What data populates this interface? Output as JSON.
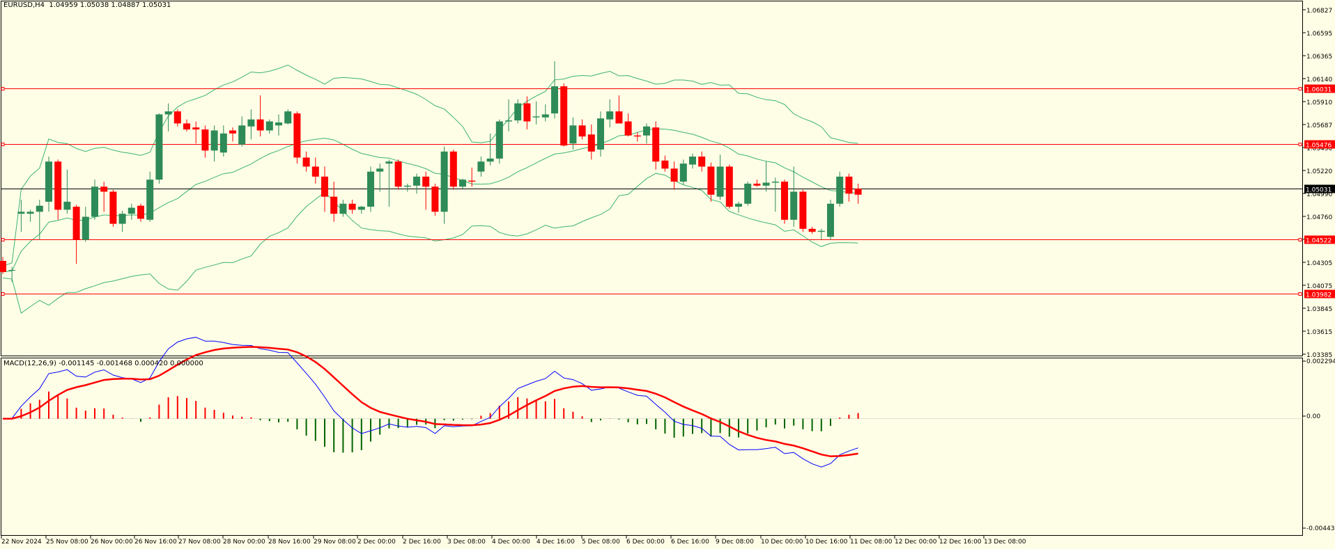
{
  "symbol_info": "EURUSD,H4  1.04959 1.05038 1.04887 1.05031",
  "indicator_info": "MACD(12,26,9) -0.001145 -0.001468 0.000420 0.000000",
  "colors": {
    "background": "#fefee6",
    "bull_candle": "#2e8b57",
    "bear_candle": "#ff0000",
    "bollinger": "#3cb371",
    "level_line": "#ff0000",
    "current_price_line": "#000000",
    "macd_line": "#0000ff",
    "signal_line": "#ff0000",
    "hist_positive": "#ff0000",
    "hist_negative": "#006400"
  },
  "price_axis": {
    "labels": [
      "1.06827",
      "1.06595",
      "1.06365",
      "1.06140",
      "1.05910",
      "1.05687",
      "1.05450",
      "1.05220",
      "1.04990",
      "1.04760",
      "1.04530",
      "1.04305",
      "1.04075",
      "1.03845",
      "1.03615",
      "1.03385"
    ],
    "min": 1.0336,
    "max": 1.0691
  },
  "price_levels": [
    {
      "value": 1.06031,
      "label": "1.06031",
      "type": "resistance"
    },
    {
      "value": 1.05476,
      "label": "1.05476",
      "type": "resistance"
    },
    {
      "value": 1.05031,
      "label": "1.05031",
      "type": "current"
    },
    {
      "value": 1.04522,
      "label": "1.04522",
      "type": "support"
    },
    {
      "value": 1.03982,
      "label": "1.03982",
      "type": "support"
    }
  ],
  "macd_axis": {
    "labels": [
      "0.002294",
      "0.00",
      "-0.004437"
    ],
    "min": -0.0046,
    "max": 0.0024
  },
  "time_axis": [
    "22 Nov 2024",
    "25 Nov 08:00",
    "26 Nov 00:00",
    "26 Nov 16:00",
    "27 Nov 08:00",
    "28 Nov 00:00",
    "28 Nov 16:00",
    "29 Nov 08:00",
    "2 Dec 00:00",
    "2 Dec 16:00",
    "3 Dec 08:00",
    "4 Dec 00:00",
    "4 Dec 16:00",
    "5 Dec 08:00",
    "6 Dec 00:00",
    "6 Dec 16:00",
    "9 Dec 08:00",
    "10 Dec 00:00",
    "10 Dec 16:00",
    "11 Dec 08:00",
    "12 Dec 00:00",
    "12 Dec 16:00",
    "13 Dec 08:00"
  ],
  "chart_data": {
    "type": "candlestick",
    "symbol": "EURUSD",
    "timeframe": "H4",
    "candles": [
      {
        "o": 1.0431,
        "h": 1.0435,
        "l": 1.0418,
        "c": 1.042
      },
      {
        "o": 1.0422,
        "h": 1.0425,
        "l": 1.041,
        "c": 1.0422
      },
      {
        "o": 1.0478,
        "h": 1.0492,
        "l": 1.046,
        "c": 1.048
      },
      {
        "o": 1.0478,
        "h": 1.0482,
        "l": 1.047,
        "c": 1.048
      },
      {
        "o": 1.048,
        "h": 1.0492,
        "l": 1.0452,
        "c": 1.0486
      },
      {
        "o": 1.049,
        "h": 1.0535,
        "l": 1.048,
        "c": 1.053
      },
      {
        "o": 1.053,
        "h": 1.0532,
        "l": 1.0472,
        "c": 1.0482
      },
      {
        "o": 1.0482,
        "h": 1.0522,
        "l": 1.0478,
        "c": 1.049
      },
      {
        "o": 1.0485,
        "h": 1.0487,
        "l": 1.0428,
        "c": 1.0452
      },
      {
        "o": 1.0452,
        "h": 1.0485,
        "l": 1.045,
        "c": 1.0475
      },
      {
        "o": 1.0475,
        "h": 1.0512,
        "l": 1.0472,
        "c": 1.0505
      },
      {
        "o": 1.0505,
        "h": 1.051,
        "l": 1.048,
        "c": 1.05
      },
      {
        "o": 1.05,
        "h": 1.0502,
        "l": 1.0465,
        "c": 1.0468
      },
      {
        "o": 1.0468,
        "h": 1.0481,
        "l": 1.046,
        "c": 1.0478
      },
      {
        "o": 1.0478,
        "h": 1.0488,
        "l": 1.0472,
        "c": 1.0484
      },
      {
        "o": 1.0486,
        "h": 1.0488,
        "l": 1.047,
        "c": 1.0473
      },
      {
        "o": 1.0472,
        "h": 1.052,
        "l": 1.047,
        "c": 1.0512
      },
      {
        "o": 1.0512,
        "h": 1.0578,
        "l": 1.0508,
        "c": 1.0577
      },
      {
        "o": 1.0577,
        "h": 1.0588,
        "l": 1.056,
        "c": 1.058
      },
      {
        "o": 1.058,
        "h": 1.0582,
        "l": 1.0565,
        "c": 1.0568
      },
      {
        "o": 1.0568,
        "h": 1.0572,
        "l": 1.056,
        "c": 1.0562
      },
      {
        "o": 1.0564,
        "h": 1.057,
        "l": 1.0548,
        "c": 1.0562
      },
      {
        "o": 1.0562,
        "h": 1.0566,
        "l": 1.0534,
        "c": 1.0541
      },
      {
        "o": 1.0541,
        "h": 1.0566,
        "l": 1.053,
        "c": 1.0561
      },
      {
        "o": 1.0539,
        "h": 1.0566,
        "l": 1.0535,
        "c": 1.0558
      },
      {
        "o": 1.0561,
        "h": 1.0564,
        "l": 1.055,
        "c": 1.0558
      },
      {
        "o": 1.0547,
        "h": 1.0575,
        "l": 1.0545,
        "c": 1.0566
      },
      {
        "o": 1.0565,
        "h": 1.0582,
        "l": 1.0552,
        "c": 1.0572
      },
      {
        "o": 1.0572,
        "h": 1.0596,
        "l": 1.0555,
        "c": 1.0561
      },
      {
        "o": 1.0561,
        "h": 1.0572,
        "l": 1.0558,
        "c": 1.057
      },
      {
        "o": 1.0566,
        "h": 1.0577,
        "l": 1.0556,
        "c": 1.0569
      },
      {
        "o": 1.0568,
        "h": 1.0582,
        "l": 1.0567,
        "c": 1.058
      },
      {
        "o": 1.0578,
        "h": 1.058,
        "l": 1.0528,
        "c": 1.0534
      },
      {
        "o": 1.0534,
        "h": 1.054,
        "l": 1.052,
        "c": 1.0525
      },
      {
        "o": 1.0525,
        "h": 1.0534,
        "l": 1.0508,
        "c": 1.0515
      },
      {
        "o": 1.0515,
        "h": 1.0525,
        "l": 1.048,
        "c": 1.0495
      },
      {
        "o": 1.0495,
        "h": 1.051,
        "l": 1.047,
        "c": 1.0478
      },
      {
        "o": 1.0478,
        "h": 1.0492,
        "l": 1.0475,
        "c": 1.0488
      },
      {
        "o": 1.0488,
        "h": 1.0492,
        "l": 1.0478,
        "c": 1.0482
      },
      {
        "o": 1.0482,
        "h": 1.0486,
        "l": 1.0478,
        "c": 1.0485
      },
      {
        "o": 1.0485,
        "h": 1.0525,
        "l": 1.048,
        "c": 1.052
      },
      {
        "o": 1.052,
        "h": 1.0528,
        "l": 1.05,
        "c": 1.0523
      },
      {
        "o": 1.0528,
        "h": 1.0532,
        "l": 1.0485,
        "c": 1.053
      },
      {
        "o": 1.053,
        "h": 1.0532,
        "l": 1.0502,
        "c": 1.0505
      },
      {
        "o": 1.0505,
        "h": 1.0508,
        "l": 1.05,
        "c": 1.0506
      },
      {
        "o": 1.0506,
        "h": 1.0518,
        "l": 1.0498,
        "c": 1.0515
      },
      {
        "o": 1.0515,
        "h": 1.052,
        "l": 1.0482,
        "c": 1.0505
      },
      {
        "o": 1.0505,
        "h": 1.0508,
        "l": 1.0476,
        "c": 1.048
      },
      {
        "o": 1.048,
        "h": 1.0545,
        "l": 1.0468,
        "c": 1.054
      },
      {
        "o": 1.054,
        "h": 1.0542,
        "l": 1.0502,
        "c": 1.0505
      },
      {
        "o": 1.0505,
        "h": 1.0513,
        "l": 1.0503,
        "c": 1.0512
      },
      {
        "o": 1.0511,
        "h": 1.0524,
        "l": 1.0505,
        "c": 1.051
      },
      {
        "o": 1.052,
        "h": 1.0535,
        "l": 1.0515,
        "c": 1.053
      },
      {
        "o": 1.053,
        "h": 1.0558,
        "l": 1.0526,
        "c": 1.0533
      },
      {
        "o": 1.0533,
        "h": 1.0572,
        "l": 1.0528,
        "c": 1.057
      },
      {
        "o": 1.057,
        "h": 1.0592,
        "l": 1.056,
        "c": 1.0571
      },
      {
        "o": 1.0571,
        "h": 1.0592,
        "l": 1.0568,
        "c": 1.0588
      },
      {
        "o": 1.0588,
        "h": 1.0595,
        "l": 1.0562,
        "c": 1.057
      },
      {
        "o": 1.0574,
        "h": 1.059,
        "l": 1.0567,
        "c": 1.0575
      },
      {
        "o": 1.0574,
        "h": 1.0587,
        "l": 1.057,
        "c": 1.0577
      },
      {
        "o": 1.0578,
        "h": 1.063,
        "l": 1.0573,
        "c": 1.0605
      },
      {
        "o": 1.0605,
        "h": 1.0608,
        "l": 1.0545,
        "c": 1.0546
      },
      {
        "o": 1.0548,
        "h": 1.0574,
        "l": 1.0542,
        "c": 1.0566
      },
      {
        "o": 1.0566,
        "h": 1.0572,
        "l": 1.0552,
        "c": 1.0555
      },
      {
        "o": 1.0557,
        "h": 1.0567,
        "l": 1.0532,
        "c": 1.054
      },
      {
        "o": 1.0542,
        "h": 1.058,
        "l": 1.0535,
        "c": 1.0573
      },
      {
        "o": 1.0572,
        "h": 1.0592,
        "l": 1.0564,
        "c": 1.058
      },
      {
        "o": 1.058,
        "h": 1.0596,
        "l": 1.057,
        "c": 1.0568
      },
      {
        "o": 1.057,
        "h": 1.0578,
        "l": 1.0555,
        "c": 1.0556
      },
      {
        "o": 1.0556,
        "h": 1.0559,
        "l": 1.055,
        "c": 1.0555
      },
      {
        "o": 1.0556,
        "h": 1.0568,
        "l": 1.0548,
        "c": 1.0565
      },
      {
        "o": 1.0564,
        "h": 1.057,
        "l": 1.0522,
        "c": 1.053
      },
      {
        "o": 1.0531,
        "h": 1.0536,
        "l": 1.052,
        "c": 1.0523
      },
      {
        "o": 1.0523,
        "h": 1.053,
        "l": 1.0502,
        "c": 1.051
      },
      {
        "o": 1.051,
        "h": 1.0532,
        "l": 1.0507,
        "c": 1.0528
      },
      {
        "o": 1.0527,
        "h": 1.0538,
        "l": 1.0523,
        "c": 1.0535
      },
      {
        "o": 1.0535,
        "h": 1.054,
        "l": 1.052,
        "c": 1.0525
      },
      {
        "o": 1.0525,
        "h": 1.0529,
        "l": 1.049,
        "c": 1.0497
      },
      {
        "o": 1.0495,
        "h": 1.0537,
        "l": 1.0492,
        "c": 1.0525
      },
      {
        "o": 1.0525,
        "h": 1.0527,
        "l": 1.0483,
        "c": 1.0485
      },
      {
        "o": 1.0485,
        "h": 1.049,
        "l": 1.0479,
        "c": 1.0488
      },
      {
        "o": 1.0488,
        "h": 1.051,
        "l": 1.0486,
        "c": 1.0508
      },
      {
        "o": 1.0508,
        "h": 1.0512,
        "l": 1.0505,
        "c": 1.0506
      },
      {
        "o": 1.0506,
        "h": 1.053,
        "l": 1.05,
        "c": 1.0509
      },
      {
        "o": 1.0509,
        "h": 1.0514,
        "l": 1.048,
        "c": 1.051
      },
      {
        "o": 1.051,
        "h": 1.0512,
        "l": 1.0468,
        "c": 1.0472
      },
      {
        "o": 1.0472,
        "h": 1.0525,
        "l": 1.0465,
        "c": 1.05
      },
      {
        "o": 1.05,
        "h": 1.0502,
        "l": 1.046,
        "c": 1.0463
      },
      {
        "o": 1.0463,
        "h": 1.0465,
        "l": 1.0458,
        "c": 1.046
      },
      {
        "o": 1.046,
        "h": 1.0463,
        "l": 1.0452,
        "c": 1.0461
      },
      {
        "o": 1.0455,
        "h": 1.0492,
        "l": 1.0452,
        "c": 1.0488
      },
      {
        "o": 1.0488,
        "h": 1.052,
        "l": 1.0485,
        "c": 1.0515
      },
      {
        "o": 1.0515,
        "h": 1.0518,
        "l": 1.049,
        "c": 1.0498
      },
      {
        "o": 1.0503,
        "h": 1.0508,
        "l": 1.0488,
        "c": 1.0497
      }
    ]
  }
}
